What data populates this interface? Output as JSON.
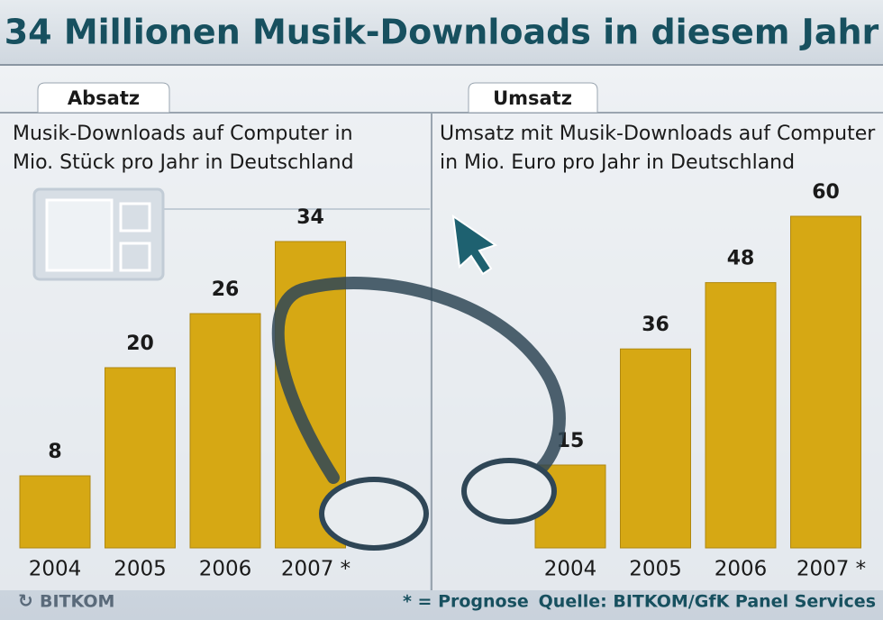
{
  "title": "34 Millionen Musik-Downloads in diesem Jahr",
  "chart_data": [
    {
      "type": "bar",
      "tab": "Absatz",
      "title": [
        "Musik-Downloads auf Computer in",
        "Mio. Stück pro Jahr in Deutschland"
      ],
      "categories": [
        "2004",
        "2005",
        "2006",
        "2007 *"
      ],
      "values": [
        8,
        20,
        26,
        34
      ],
      "color": "#d6a814"
    },
    {
      "type": "bar",
      "tab": "Umsatz",
      "title": [
        "Umsatz mit Musik-Downloads auf Computer",
        "in Mio. Euro pro Jahr in Deutschland"
      ],
      "categories": [
        "2004",
        "2005",
        "2006",
        "2007 *"
      ],
      "values": [
        15,
        36,
        48,
        60
      ],
      "color": "#d6a814"
    }
  ],
  "logo": "BITKOM",
  "footnote": "* = Prognose",
  "source": "Quelle: BITKOM/GfK Panel Services"
}
